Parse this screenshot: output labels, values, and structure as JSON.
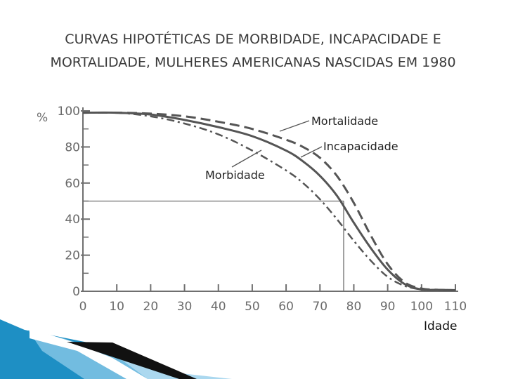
{
  "title_lines": [
    "CURVAS HIPOTÉTICAS DE MORBIDADE, INCAPACIDADE E",
    "MORTALIDADE, MULHERES AMERICANAS NASCIDAS EM 1980"
  ],
  "colors": {
    "curves": "#555555",
    "axes": "#6f6f6f",
    "title": "#3a3a3a",
    "deco_blue": "#1e8fc4"
  },
  "chart_data": {
    "type": "line",
    "title": "CURVAS HIPOTÉTICAS DE MORBIDADE, INCAPACIDADE E MORTALIDADE, MULHERES AMERICANAS NASCIDAS EM 1980",
    "xlabel": "Idade",
    "ylabel": "%",
    "xlim": [
      0,
      110
    ],
    "ylim": [
      0,
      100
    ],
    "x_ticks": [
      0,
      10,
      20,
      30,
      40,
      50,
      60,
      70,
      80,
      90,
      100,
      110
    ],
    "y_ticks": [
      0,
      20,
      40,
      60,
      80,
      100
    ],
    "grid": false,
    "series": [
      {
        "name": "Mortalidade",
        "style": "dashed",
        "x": [
          0,
          10,
          20,
          30,
          40,
          50,
          60,
          65,
          70,
          75,
          80,
          85,
          90,
          95,
          100,
          105,
          110
        ],
        "y": [
          99,
          99,
          98.5,
          97,
          94,
          90,
          84,
          80,
          74,
          64,
          49,
          31,
          15,
          5,
          1.5,
          0.8,
          0.6
        ]
      },
      {
        "name": "Incapacidade",
        "style": "solid",
        "x": [
          0,
          10,
          20,
          30,
          40,
          50,
          60,
          65,
          70,
          75,
          80,
          85,
          90,
          95,
          100,
          105,
          110
        ],
        "y": [
          99,
          99,
          98,
          95,
          91,
          86,
          78,
          72,
          64,
          53,
          38,
          24,
          12,
          4,
          1,
          0.8,
          0.6
        ]
      },
      {
        "name": "Morbidade",
        "style": "dash-dot",
        "x": [
          0,
          10,
          20,
          30,
          40,
          50,
          60,
          65,
          70,
          75,
          80,
          85,
          90,
          95,
          100,
          105,
          110
        ],
        "y": [
          99,
          99,
          97,
          93,
          87,
          78,
          67,
          60,
          51,
          40,
          28,
          17,
          8,
          3,
          1,
          0.6,
          0.5
        ]
      }
    ],
    "annotations": [
      {
        "text": "Mortalidade",
        "points_to": "Mortalidade"
      },
      {
        "text": "Incapacidade",
        "points_to": "Incapacidade"
      },
      {
        "text": "Morbidade",
        "points_to": "Morbidade"
      }
    ],
    "reference_lines": {
      "y": 50,
      "x": 77
    }
  }
}
